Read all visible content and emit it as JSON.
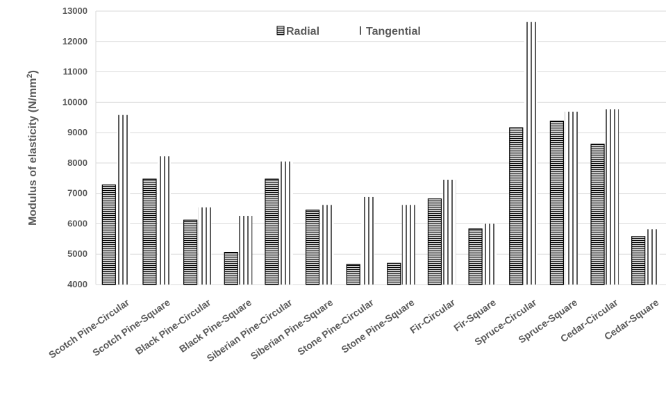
{
  "chart_data": {
    "type": "bar",
    "title": "",
    "xlabel": "",
    "ylabel": "Modulus of elasticity (N/mm²)",
    "ylabel_parts": [
      "Modulus of elasticity (N/mm",
      "2",
      ")"
    ],
    "ylim": [
      4000,
      13000
    ],
    "yticks": [
      4000,
      5000,
      6000,
      7000,
      8000,
      9000,
      10000,
      11000,
      12000,
      13000
    ],
    "grid": true,
    "legend_position": "top-center",
    "categories": [
      "Scotch Pine-Circular",
      "Scotch Pine-Square",
      "Black Pine-Circular",
      "Black Pine-Square",
      "Siberian Pine-Circular",
      "Siberian Pine-Square",
      "Stone Pine-Circular",
      "Stone Pine-Square",
      "Fir-Circular",
      "Fir-Square",
      "Spruce-Circular",
      "Spruce-Square",
      "Cedar-Circular",
      "Cedar-Square"
    ],
    "series": [
      {
        "name": "Radial",
        "pattern": "horizontal-lines",
        "values": [
          7280,
          7470,
          6120,
          5060,
          7470,
          6450,
          4660,
          4700,
          6820,
          5830,
          9160,
          9380,
          8620,
          5580
        ]
      },
      {
        "name": "Tangential",
        "pattern": "vertical-lines",
        "values": [
          9580,
          8220,
          6540,
          6260,
          8050,
          6620,
          6880,
          6620,
          7450,
          6000,
          12640,
          9690,
          9770,
          5820
        ]
      }
    ],
    "colors": {
      "stroke": "#000000",
      "grid": "#d9d9d9",
      "text": "#595959"
    }
  }
}
